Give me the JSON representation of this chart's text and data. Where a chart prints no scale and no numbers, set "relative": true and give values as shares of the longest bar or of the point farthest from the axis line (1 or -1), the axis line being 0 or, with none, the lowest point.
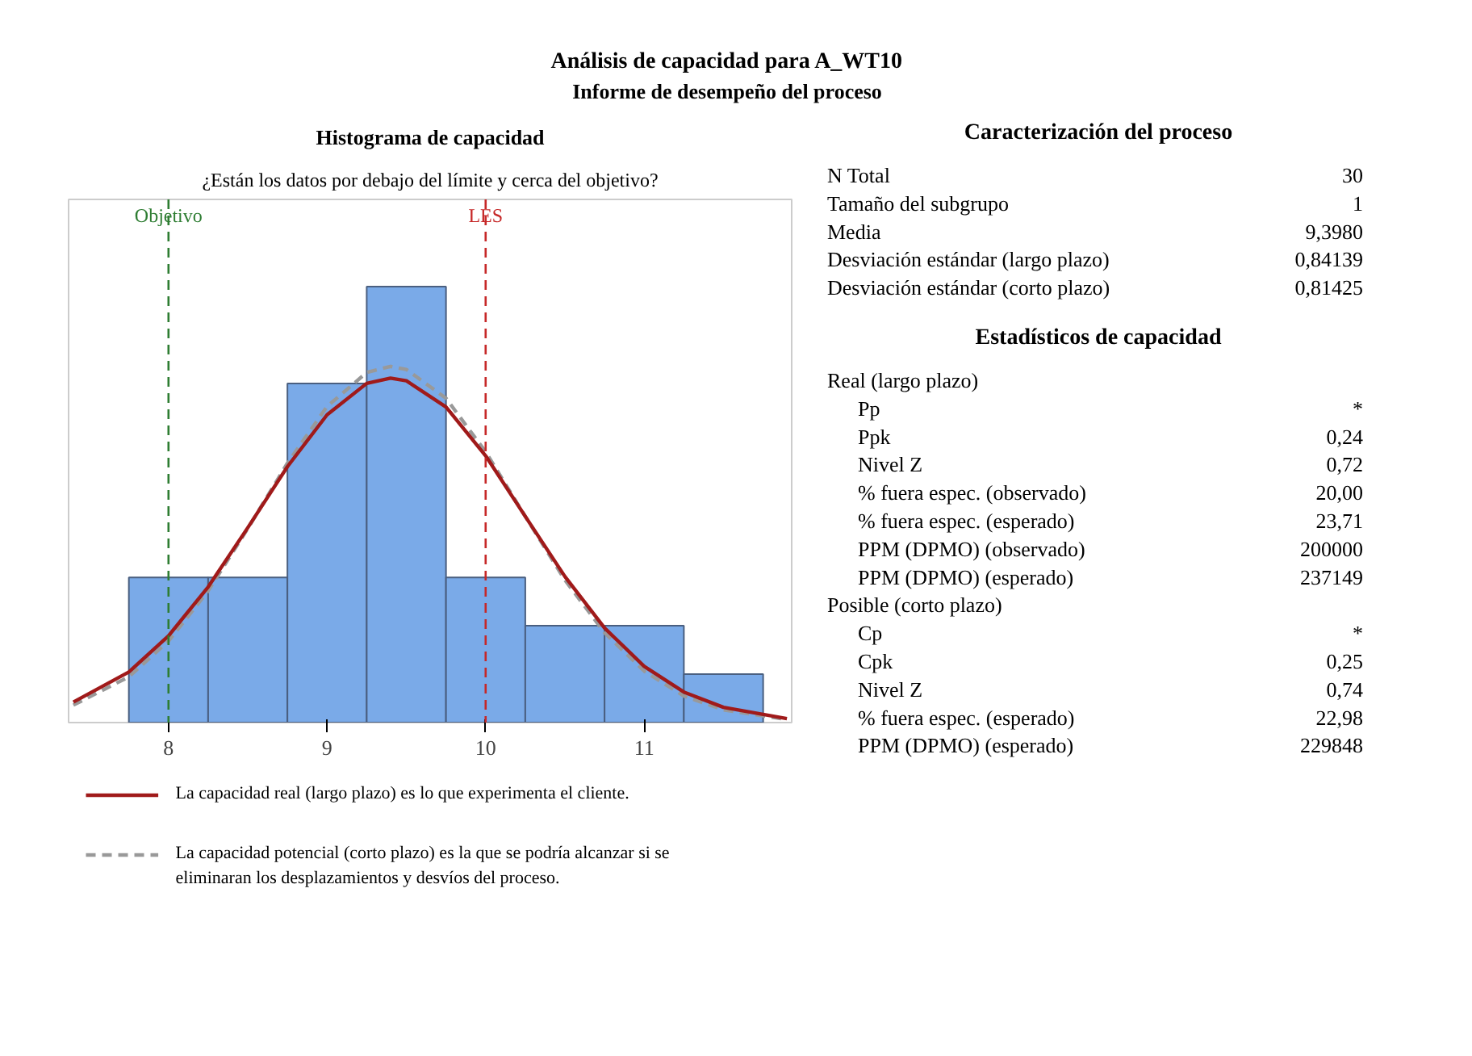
{
  "chart_data": [
    {
      "type": "other",
      "title": "Análisis de capacidad para A_WT10",
      "subtitle": "Informe de desempeño del proceso"
    },
    {
      "type": "histogram",
      "title": "Histograma de capacidad",
      "subtitle": "¿Están los datos por debajo del límite y cerca del objetivo?",
      "relative": true,
      "color": "#7aaae8",
      "bins": [
        7.75,
        8.25,
        8.75,
        9.25,
        9.75,
        10.25,
        10.75,
        11.25,
        11.75
      ],
      "values": [
        0.333,
        0.333,
        0.778,
        1,
        0.333,
        0.222,
        0.222,
        0.111
      ],
      "xlim": [
        7.37,
        11.93
      ],
      "xticks": [
        8,
        9,
        10,
        11
      ],
      "grid": false,
      "legend": "bottom",
      "series": [
        {
          "type": "line",
          "name": "La capacidad potencial (corto plazo) es la que se podría alcanzar si se eliminaran los desplazamientos y desvíos del proceso.",
          "color": "#999999",
          "line_style": "dashed",
          "x": [
            7.4,
            7.75,
            8.0,
            8.25,
            8.5,
            8.75,
            9.0,
            9.25,
            9.4,
            9.5,
            9.75,
            10.0,
            10.25,
            10.5,
            10.75,
            11.0,
            11.25,
            11.5,
            11.9
          ],
          "values": [
            0.04,
            0.105,
            0.187,
            0.302,
            0.445,
            0.595,
            0.725,
            0.803,
            0.817,
            0.81,
            0.744,
            0.621,
            0.473,
            0.327,
            0.206,
            0.118,
            0.061,
            0.029,
            0.007
          ]
        },
        {
          "type": "line",
          "name": "La capacidad real (largo plazo) es lo que experimenta el cliente.",
          "color": "#a01a1a",
          "line_style": "solid",
          "x": [
            7.4,
            7.75,
            8.0,
            8.25,
            8.5,
            8.75,
            9.0,
            9.25,
            9.4,
            9.5,
            9.75,
            10.0,
            10.25,
            10.5,
            10.75,
            11.0,
            11.25,
            11.5,
            11.9
          ],
          "values": [
            0.047,
            0.116,
            0.199,
            0.311,
            0.447,
            0.587,
            0.706,
            0.778,
            0.79,
            0.784,
            0.724,
            0.612,
            0.473,
            0.335,
            0.217,
            0.129,
            0.07,
            0.035,
            0.009
          ]
        }
      ],
      "ref_lines": [
        {
          "axis": "x",
          "value": 8,
          "label": "Objetivo",
          "color": "#2e7d32",
          "line_style": "dashed"
        },
        {
          "axis": "x",
          "value": 10,
          "label": "LES",
          "color": "#c62828",
          "line_style": "dashed"
        }
      ]
    },
    {
      "type": "other",
      "title": "Caracterización del proceso",
      "categories": [
        "N Total",
        "Tamaño del subgrupo",
        "Media",
        "Desviación estándar (largo plazo)",
        "Desviación estándar (corto plazo)"
      ],
      "value_labels": [
        "30",
        "1",
        "9,3980",
        "0,84139",
        "0,81425"
      ]
    },
    {
      "type": "other",
      "title": "Estadísticos de capacidad",
      "categories": [
        "Real (largo plazo)",
        "Pp",
        "Ppk",
        "Nivel Z",
        "% fuera espec. (observado)",
        "% fuera espec. (esperado)",
        "PPM (DPMO) (observado)",
        "PPM (DPMO) (esperado)",
        "Posible (corto plazo)",
        "Cp",
        "Cpk",
        "Nivel Z",
        "% fuera espec. (esperado)",
        "PPM (DPMO) (esperado)"
      ],
      "value_labels": [
        null,
        "*",
        "0,24",
        "0,72",
        "20,00",
        "23,71",
        "200000",
        "237149",
        null,
        "*",
        "0,25",
        "0,74",
        "22,98",
        "229848"
      ]
    }
  ]
}
